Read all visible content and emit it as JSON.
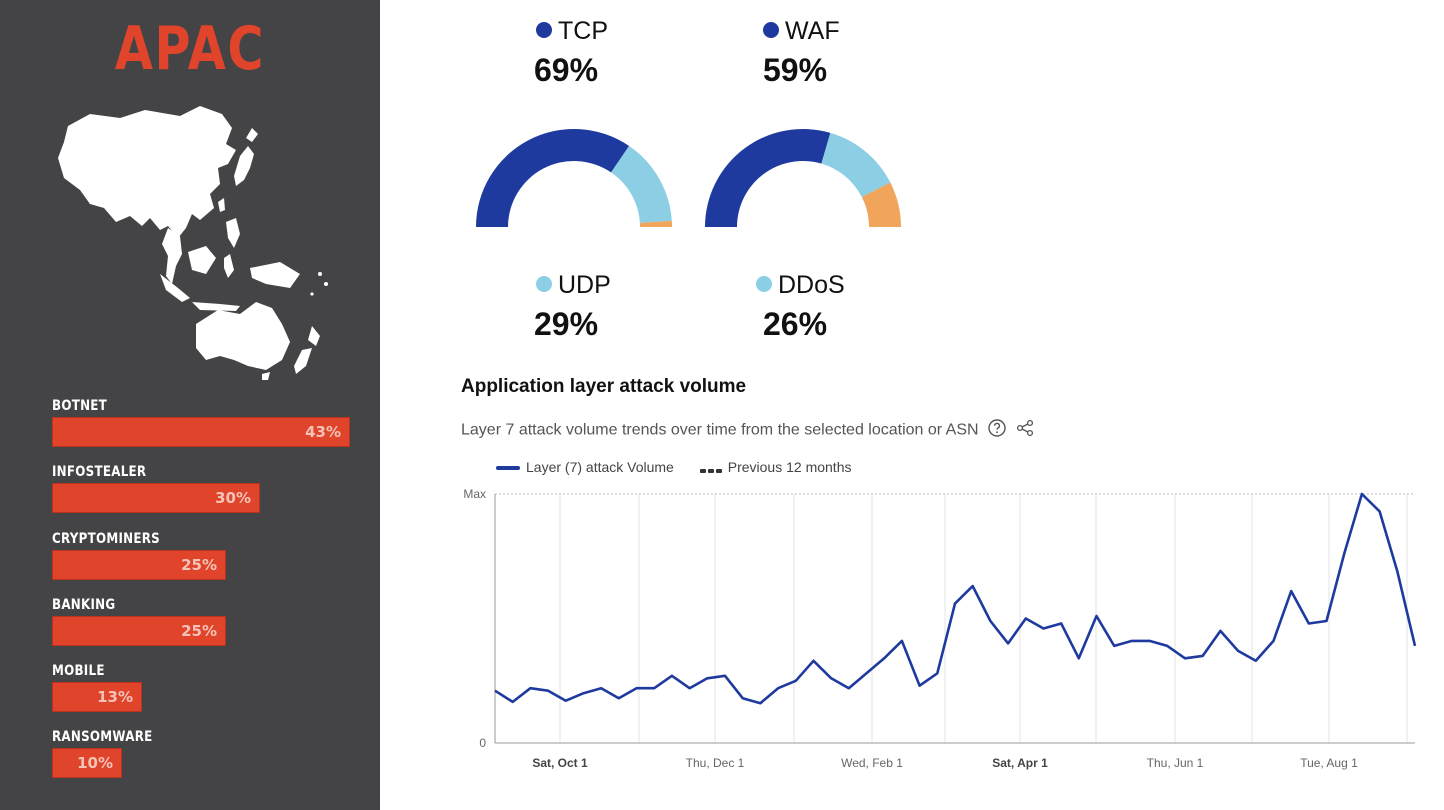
{
  "region": {
    "title": "APAC",
    "threats": [
      {
        "label": "BOTNET",
        "pct_label": "43%",
        "value": 43
      },
      {
        "label": "INFOSTEALER",
        "pct_label": "30%",
        "value": 30
      },
      {
        "label": "CRYPTOMINERS",
        "pct_label": "25%",
        "value": 25
      },
      {
        "label": "BANKING",
        "pct_label": "25%",
        "value": 25
      },
      {
        "label": "MOBILE",
        "pct_label": "13%",
        "value": 13
      },
      {
        "label": "RANSOMWARE",
        "pct_label": "10%",
        "value": 10
      }
    ]
  },
  "gauges": {
    "left": {
      "top_label": "TCP",
      "top_value": "69%",
      "bottom_label": "UDP",
      "bottom_value": "29%",
      "segments": [
        69,
        29,
        2
      ]
    },
    "right": {
      "top_label": "WAF",
      "top_value": "59%",
      "bottom_label": "DDoS",
      "bottom_value": "26%",
      "segments": [
        59,
        26,
        15
      ]
    },
    "colors": {
      "primary": "#1f3a9e",
      "secondary": "#8ccfe5",
      "other": "#f0a55a"
    }
  },
  "section": {
    "title": "Application layer attack volume",
    "subtitle": "Layer 7 attack volume trends over time from the selected location or ASN"
  },
  "chart_data": {
    "type": "line",
    "legend": [
      "Layer (7) attack Volume",
      "Previous 12 months"
    ],
    "y_tick_labels": [
      "Max",
      "0"
    ],
    "ylim": [
      0,
      1
    ],
    "x_tick_labels": [
      "Sat, Oct 1",
      "Thu, Dec 1",
      "Wed, Feb 1",
      "Sat, Apr 1",
      "Thu, Jun 1",
      "Tue, Aug 1"
    ],
    "x_tick_bold": [
      true,
      false,
      false,
      true,
      false,
      false
    ],
    "grid": true,
    "series": [
      {
        "name": "Layer (7) attack Volume",
        "color": "#1f3a9e",
        "values": [
          0.21,
          0.165,
          0.22,
          0.21,
          0.17,
          0.2,
          0.22,
          0.18,
          0.22,
          0.22,
          0.27,
          0.22,
          0.26,
          0.27,
          0.18,
          0.16,
          0.22,
          0.25,
          0.33,
          0.26,
          0.22,
          0.28,
          0.34,
          0.41,
          0.23,
          0.28,
          0.56,
          0.63,
          0.49,
          0.4,
          0.5,
          0.46,
          0.48,
          0.34,
          0.51,
          0.39,
          0.41,
          0.41,
          0.39,
          0.34,
          0.35,
          0.45,
          0.37,
          0.33,
          0.41,
          0.61,
          0.48,
          0.49,
          0.76,
          1.0,
          0.93,
          0.69,
          0.39
        ]
      }
    ]
  }
}
